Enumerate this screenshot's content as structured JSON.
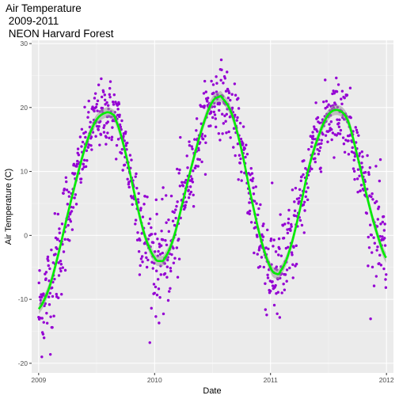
{
  "chart_data": {
    "type": "scatter",
    "title_lines": [
      "Air Temperature",
      " 2009-2011",
      " NEON Harvard Forest"
    ],
    "xlabel": "Date",
    "ylabel": "Air Temperature (C)",
    "x_range": [
      "2008-12-10",
      "2012-01-23"
    ],
    "y_range": [
      -21.5,
      30.5
    ],
    "x_ticks": [
      {
        "date": "2009-01-01",
        "label": "2009"
      },
      {
        "date": "2010-01-01",
        "label": "2010"
      },
      {
        "date": "2011-01-01",
        "label": "2011"
      },
      {
        "date": "2012-01-01",
        "label": "2012"
      }
    ],
    "y_ticks": [
      -20,
      -10,
      0,
      10,
      20,
      30
    ],
    "grid": true,
    "point_color": "#9400D3",
    "smooth_color": "#00EE00",
    "smooth_band_color": "#999999",
    "panel_color": "#EBEBEB",
    "smooth_series": {
      "name": "",
      "x": [
        "2009-01-01",
        "2009-02-01",
        "2009-03-01",
        "2009-04-01",
        "2009-05-01",
        "2009-06-01",
        "2009-07-01",
        "2009-08-01",
        "2009-08-20",
        "2009-09-01",
        "2009-10-01",
        "2009-11-01",
        "2009-12-01",
        "2010-01-01",
        "2010-01-20",
        "2010-02-01",
        "2010-03-01",
        "2010-04-01",
        "2010-05-01",
        "2010-06-01",
        "2010-07-01",
        "2010-07-25",
        "2010-08-01",
        "2010-09-01",
        "2010-10-01",
        "2010-11-01",
        "2010-12-01",
        "2011-01-01",
        "2011-01-20",
        "2011-02-01",
        "2011-03-01",
        "2011-04-01",
        "2011-05-01",
        "2011-06-01",
        "2011-07-01",
        "2011-08-01",
        "2011-09-01",
        "2011-10-01",
        "2011-11-01",
        "2011-12-01",
        "2011-12-31"
      ],
      "y": [
        -11.5,
        -8.5,
        -3.5,
        3.0,
        9.0,
        14.5,
        18.0,
        19.2,
        19.0,
        18.0,
        13.0,
        6.0,
        0.0,
        -3.5,
        -4.0,
        -3.6,
        -0.5,
        5.5,
        11.5,
        17.0,
        20.8,
        21.7,
        21.5,
        19.0,
        13.5,
        6.0,
        -0.5,
        -5.0,
        -6.0,
        -5.6,
        -2.5,
        3.5,
        10.5,
        15.5,
        18.8,
        19.6,
        18.0,
        12.5,
        6.0,
        0.5,
        -3.5
      ]
    }
  }
}
